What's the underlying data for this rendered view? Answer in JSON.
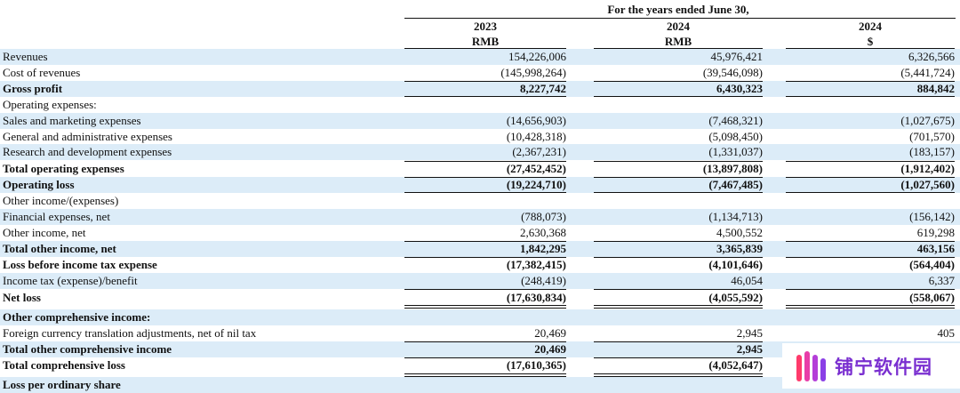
{
  "header": {
    "period_caption": "For the years ended June 30,",
    "columns": [
      {
        "year": "2023",
        "currency": "RMB"
      },
      {
        "year": "2024",
        "currency": "RMB"
      },
      {
        "year": "2024",
        "currency": "$"
      }
    ]
  },
  "rows": [
    {
      "label": "Revenues",
      "values": [
        "154,226,006",
        "45,976,421",
        "6,326,566"
      ]
    },
    {
      "label": "Cost of revenues",
      "values": [
        "(145,998,264)",
        "(39,546,098)",
        "(5,441,724)"
      ]
    },
    {
      "label": "Gross profit",
      "values": [
        "8,227,742",
        "6,430,323",
        "884,842"
      ]
    },
    {
      "label": "Operating expenses:",
      "values": [
        "",
        "",
        ""
      ]
    },
    {
      "label": "Sales and marketing expenses",
      "values": [
        "(14,656,903)",
        "(7,468,321)",
        "(1,027,675)"
      ]
    },
    {
      "label": "General and administrative expenses",
      "values": [
        "(10,428,318)",
        "(5,098,450)",
        "(701,570)"
      ]
    },
    {
      "label": "Research and development expenses",
      "values": [
        "(2,367,231)",
        "(1,331,037)",
        "(183,157)"
      ]
    },
    {
      "label": "Total operating expenses",
      "values": [
        "(27,452,452)",
        "(13,897,808)",
        "(1,912,402)"
      ]
    },
    {
      "label": "Operating loss",
      "values": [
        "(19,224,710)",
        "(7,467,485)",
        "(1,027,560)"
      ]
    },
    {
      "label": "Other income/(expenses)",
      "values": [
        "",
        "",
        ""
      ]
    },
    {
      "label": "Financial expenses, net",
      "values": [
        "(788,073)",
        "(1,134,713)",
        "(156,142)"
      ]
    },
    {
      "label": "Other income, net",
      "values": [
        "2,630,368",
        "4,500,552",
        "619,298"
      ]
    },
    {
      "label": "Total other income, net",
      "values": [
        "1,842,295",
        "3,365,839",
        "463,156"
      ]
    },
    {
      "label": "Loss before income tax expense",
      "values": [
        "(17,382,415)",
        "(4,101,646)",
        "(564,404)"
      ]
    },
    {
      "label": "Income tax (expense)/benefit",
      "values": [
        "(248,419)",
        "46,054",
        "6,337"
      ]
    },
    {
      "label": "Net loss",
      "values": [
        "(17,630,834)",
        "(4,055,592)",
        "(558,067)"
      ]
    },
    {
      "label": "Other comprehensive income:",
      "values": [
        "",
        "",
        ""
      ]
    },
    {
      "label": "Foreign currency translation adjustments, net of nil tax",
      "values": [
        "20,469",
        "2,945",
        "405"
      ]
    },
    {
      "label": "Total other comprehensive income",
      "values": [
        "20,469",
        "2,945",
        ""
      ]
    },
    {
      "label": "Total comprehensive loss",
      "values": [
        "(17,610,365)",
        "(4,052,647)",
        ""
      ]
    },
    {
      "label": "Loss per ordinary share",
      "values": [
        "",
        "",
        ""
      ]
    }
  ],
  "watermark": {
    "text": "铺宁软件园"
  },
  "colors": {
    "row_shade": "#dcecf8",
    "watermark_text": "#7a2fd0"
  }
}
